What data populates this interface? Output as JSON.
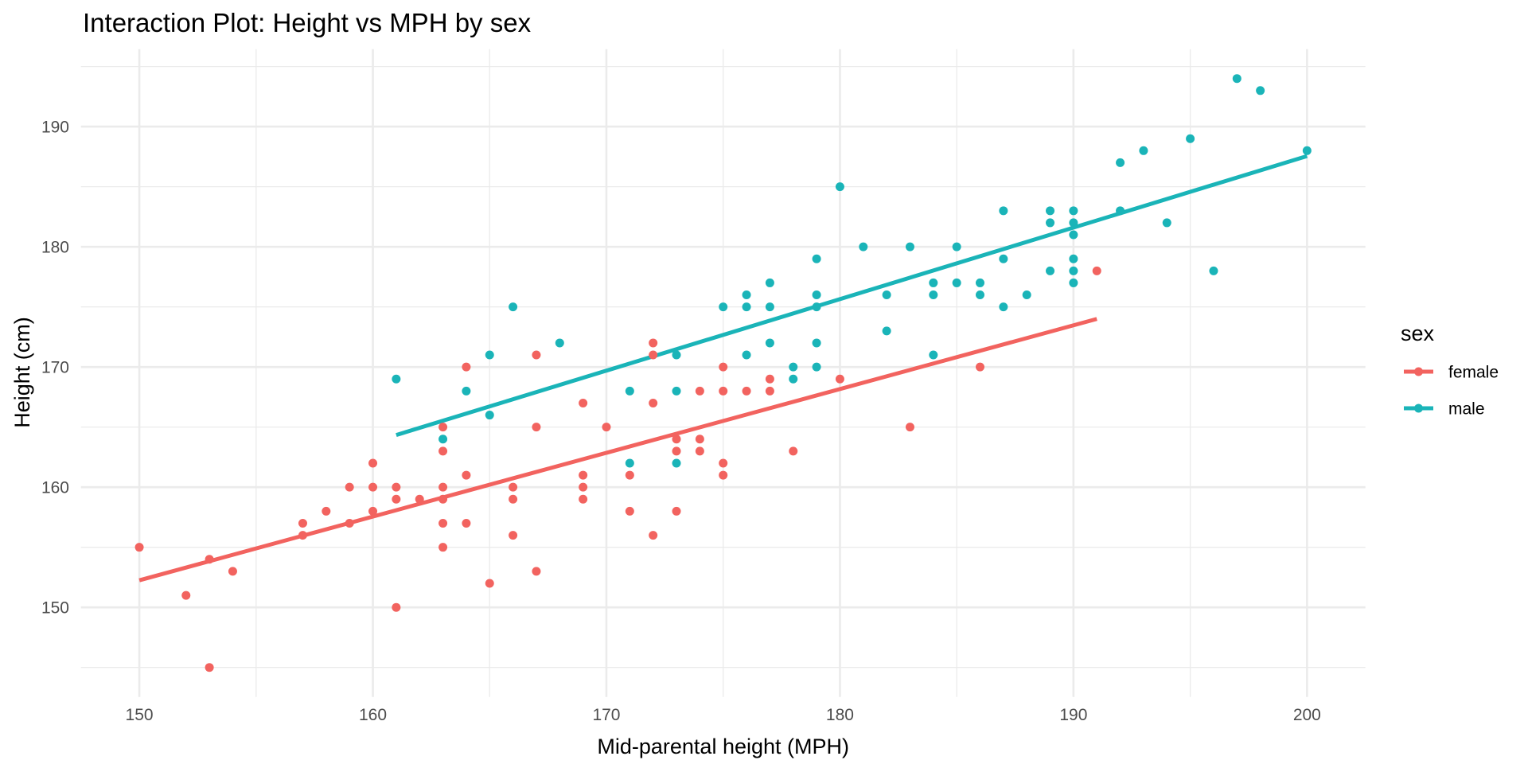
{
  "chart_data": {
    "type": "scatter",
    "title": "Interaction Plot: Height vs MPH by sex",
    "xlabel": "Mid-parental height (MPH)",
    "ylabel": "Height (cm)",
    "xlim": [
      147.5,
      202.5
    ],
    "ylim": [
      142.55,
      196.45
    ],
    "x_ticks": [
      150,
      160,
      170,
      180,
      190,
      200
    ],
    "y_ticks": [
      150,
      160,
      170,
      180,
      190
    ],
    "x_minor": [
      155,
      165,
      175,
      185,
      195
    ],
    "y_minor": [
      145,
      155,
      165,
      175,
      185,
      195
    ],
    "grid": true,
    "legend": {
      "title": "sex",
      "position": "right",
      "entries": [
        "female",
        "male"
      ]
    },
    "series": [
      {
        "name": "female",
        "color": "#F2635F",
        "points": [
          [
            150,
            155
          ],
          [
            152,
            151
          ],
          [
            153,
            154
          ],
          [
            153,
            145
          ],
          [
            154,
            153
          ],
          [
            157,
            157
          ],
          [
            157,
            156
          ],
          [
            158,
            158
          ],
          [
            159,
            160
          ],
          [
            159,
            157
          ],
          [
            160,
            162
          ],
          [
            160,
            160
          ],
          [
            160,
            158
          ],
          [
            161,
            160
          ],
          [
            161,
            159
          ],
          [
            161,
            150
          ],
          [
            162,
            159
          ],
          [
            163,
            165
          ],
          [
            163,
            163
          ],
          [
            163,
            160
          ],
          [
            163,
            159
          ],
          [
            163,
            157
          ],
          [
            163,
            155
          ],
          [
            164,
            170
          ],
          [
            164,
            161
          ],
          [
            164,
            157
          ],
          [
            165,
            152
          ],
          [
            166,
            160
          ],
          [
            166,
            159
          ],
          [
            166,
            156
          ],
          [
            167,
            171
          ],
          [
            167,
            165
          ],
          [
            167,
            153
          ],
          [
            169,
            167
          ],
          [
            169,
            161
          ],
          [
            169,
            160
          ],
          [
            169,
            159
          ],
          [
            170,
            165
          ],
          [
            171,
            161
          ],
          [
            171,
            158
          ],
          [
            172,
            172
          ],
          [
            172,
            171
          ],
          [
            172,
            167
          ],
          [
            172,
            156
          ],
          [
            173,
            164
          ],
          [
            173,
            163
          ],
          [
            173,
            158
          ],
          [
            174,
            168
          ],
          [
            174,
            164
          ],
          [
            174,
            163
          ],
          [
            175,
            170
          ],
          [
            175,
            168
          ],
          [
            175,
            162
          ],
          [
            175,
            161
          ],
          [
            176,
            168
          ],
          [
            177,
            169
          ],
          [
            177,
            168
          ],
          [
            178,
            163
          ],
          [
            180,
            169
          ],
          [
            183,
            165
          ],
          [
            186,
            170
          ],
          [
            191,
            178
          ]
        ],
        "fit_line": {
          "x": [
            150,
            191
          ],
          "y": [
            152.25,
            174.0
          ]
        }
      },
      {
        "name": "male",
        "color": "#1AB4B8",
        "points": [
          [
            161,
            169
          ],
          [
            163,
            164
          ],
          [
            164,
            168
          ],
          [
            165,
            171
          ],
          [
            165,
            166
          ],
          [
            166,
            175
          ],
          [
            168,
            172
          ],
          [
            171,
            168
          ],
          [
            171,
            162
          ],
          [
            173,
            171
          ],
          [
            173,
            168
          ],
          [
            173,
            162
          ],
          [
            175,
            175
          ],
          [
            176,
            176
          ],
          [
            176,
            175
          ],
          [
            176,
            171
          ],
          [
            177,
            177
          ],
          [
            177,
            175
          ],
          [
            177,
            172
          ],
          [
            178,
            170
          ],
          [
            178,
            169
          ],
          [
            179,
            179
          ],
          [
            179,
            176
          ],
          [
            179,
            175
          ],
          [
            179,
            172
          ],
          [
            179,
            170
          ],
          [
            180,
            185
          ],
          [
            181,
            180
          ],
          [
            182,
            176
          ],
          [
            182,
            173
          ],
          [
            183,
            180
          ],
          [
            184,
            177
          ],
          [
            184,
            176
          ],
          [
            184,
            171
          ],
          [
            185,
            180
          ],
          [
            185,
            177
          ],
          [
            186,
            177
          ],
          [
            186,
            176
          ],
          [
            187,
            183
          ],
          [
            187,
            179
          ],
          [
            187,
            175
          ],
          [
            188,
            176
          ],
          [
            189,
            183
          ],
          [
            189,
            182
          ],
          [
            189,
            178
          ],
          [
            190,
            183
          ],
          [
            190,
            182
          ],
          [
            190,
            181
          ],
          [
            190,
            179
          ],
          [
            190,
            178
          ],
          [
            190,
            177
          ],
          [
            192,
            187
          ],
          [
            192,
            183
          ],
          [
            193,
            188
          ],
          [
            194,
            182
          ],
          [
            195,
            189
          ],
          [
            196,
            178
          ],
          [
            197,
            194
          ],
          [
            198,
            193
          ],
          [
            200,
            188
          ]
        ],
        "fit_line": {
          "x": [
            161,
            200
          ],
          "y": [
            164.34,
            187.55
          ]
        }
      }
    ]
  }
}
